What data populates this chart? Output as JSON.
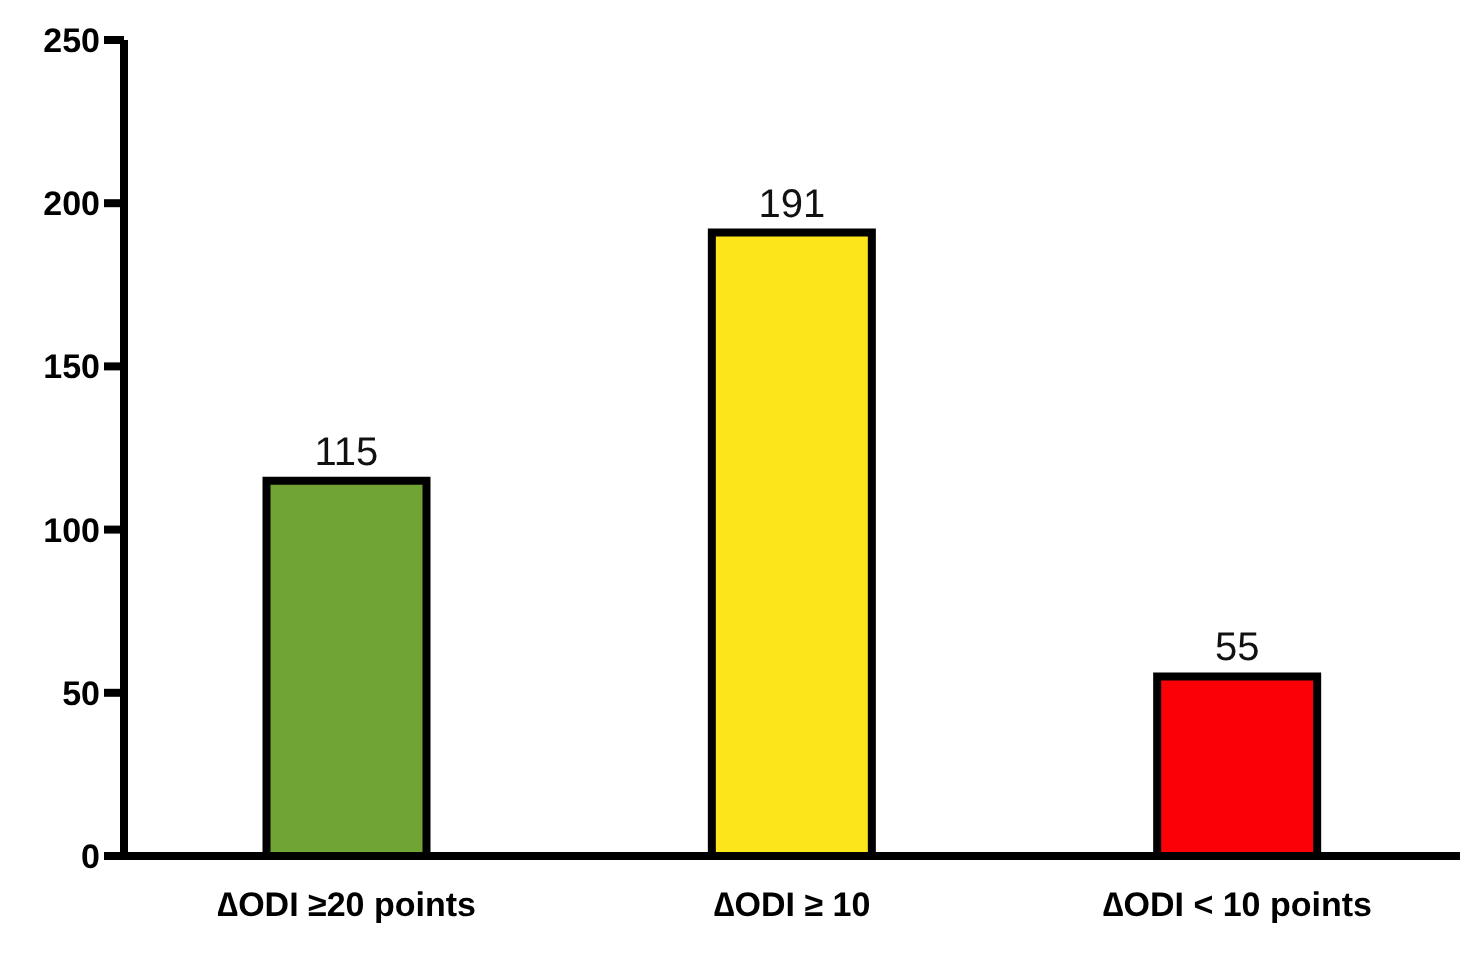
{
  "chart_data": {
    "type": "bar",
    "categories": [
      "∆ODI ≥20 points",
      "∆ODI ≥ 10",
      "∆ODI < 10 points"
    ],
    "values": [
      115,
      191,
      55
    ],
    "colors": [
      "#70a535",
      "#fce51a",
      "#fb0007"
    ],
    "ylim": [
      0,
      250
    ],
    "yticks": [
      0,
      50,
      100,
      150,
      200,
      250
    ],
    "data_labels": true,
    "grid": false
  }
}
